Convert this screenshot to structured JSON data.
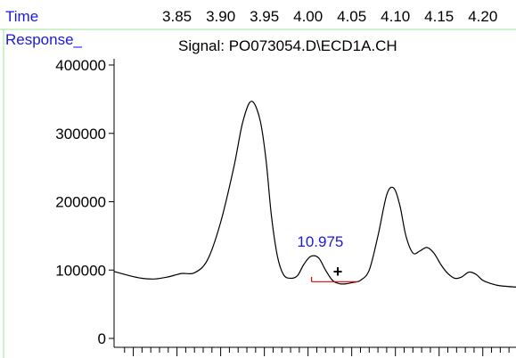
{
  "header": {
    "time_label": "Time",
    "response_label": "Response_",
    "signal_label": "Signal: PO073054.D\\ECD1A.CH"
  },
  "colors": {
    "label_blue": "#1a1adc",
    "frame_green": "#9be69b",
    "trace": "#000000",
    "baseline_red": "#e00000"
  },
  "chart_data": {
    "type": "line",
    "title": "Signal: PO073054.D\\ECD1A.CH",
    "xlabel": "Time",
    "ylabel": "Response_",
    "time_ticks": [
      "3.85",
      "3.90",
      "3.95",
      "4.00",
      "4.05",
      "4.10",
      "4.15",
      "4.20"
    ],
    "y_ticks": [
      "0",
      "100000",
      "200000",
      "300000",
      "400000"
    ],
    "ylim": [
      0,
      400000
    ],
    "xlim": [
      3.778,
      4.238
    ],
    "grid": false,
    "series": [
      {
        "x": [
          3.778,
          3.795,
          3.81,
          3.825,
          3.84,
          3.855,
          3.87,
          3.885,
          3.9,
          3.915,
          3.925,
          3.935,
          3.945,
          3.952,
          3.958,
          3.965,
          3.972,
          3.98,
          3.988,
          3.995,
          4.003,
          4.012,
          4.02,
          4.028,
          4.036,
          4.044,
          4.052,
          4.06,
          4.07,
          4.08,
          4.09,
          4.098,
          4.105,
          4.112,
          4.12,
          4.128,
          4.136,
          4.144,
          4.152,
          4.16,
          4.168,
          4.176,
          4.184,
          4.192,
          4.2,
          4.21,
          4.22,
          4.238
        ],
        "values": [
          98000,
          92000,
          88000,
          87000,
          90000,
          95000,
          96000,
          115000,
          170000,
          250000,
          315000,
          347000,
          320000,
          260000,
          180000,
          120000,
          93000,
          88000,
          92000,
          108000,
          120000,
          118000,
          100000,
          85000,
          80000,
          80000,
          82000,
          85000,
          100000,
          150000,
          210000,
          220000,
          195000,
          150000,
          125000,
          128000,
          133000,
          125000,
          108000,
          95000,
          88000,
          90000,
          97000,
          94000,
          85000,
          80000,
          77000,
          75000
        ]
      }
    ],
    "annotations": [
      {
        "text": "10.975",
        "x": 4.014,
        "y": 134000
      },
      {
        "text": "+",
        "x": 4.034,
        "y": 90000
      }
    ],
    "integration_baseline": {
      "x": [
        4.004,
        4.058
      ],
      "y": [
        83000,
        83000
      ],
      "tick_x": 4.004,
      "tick_y_top": 90000
    }
  }
}
